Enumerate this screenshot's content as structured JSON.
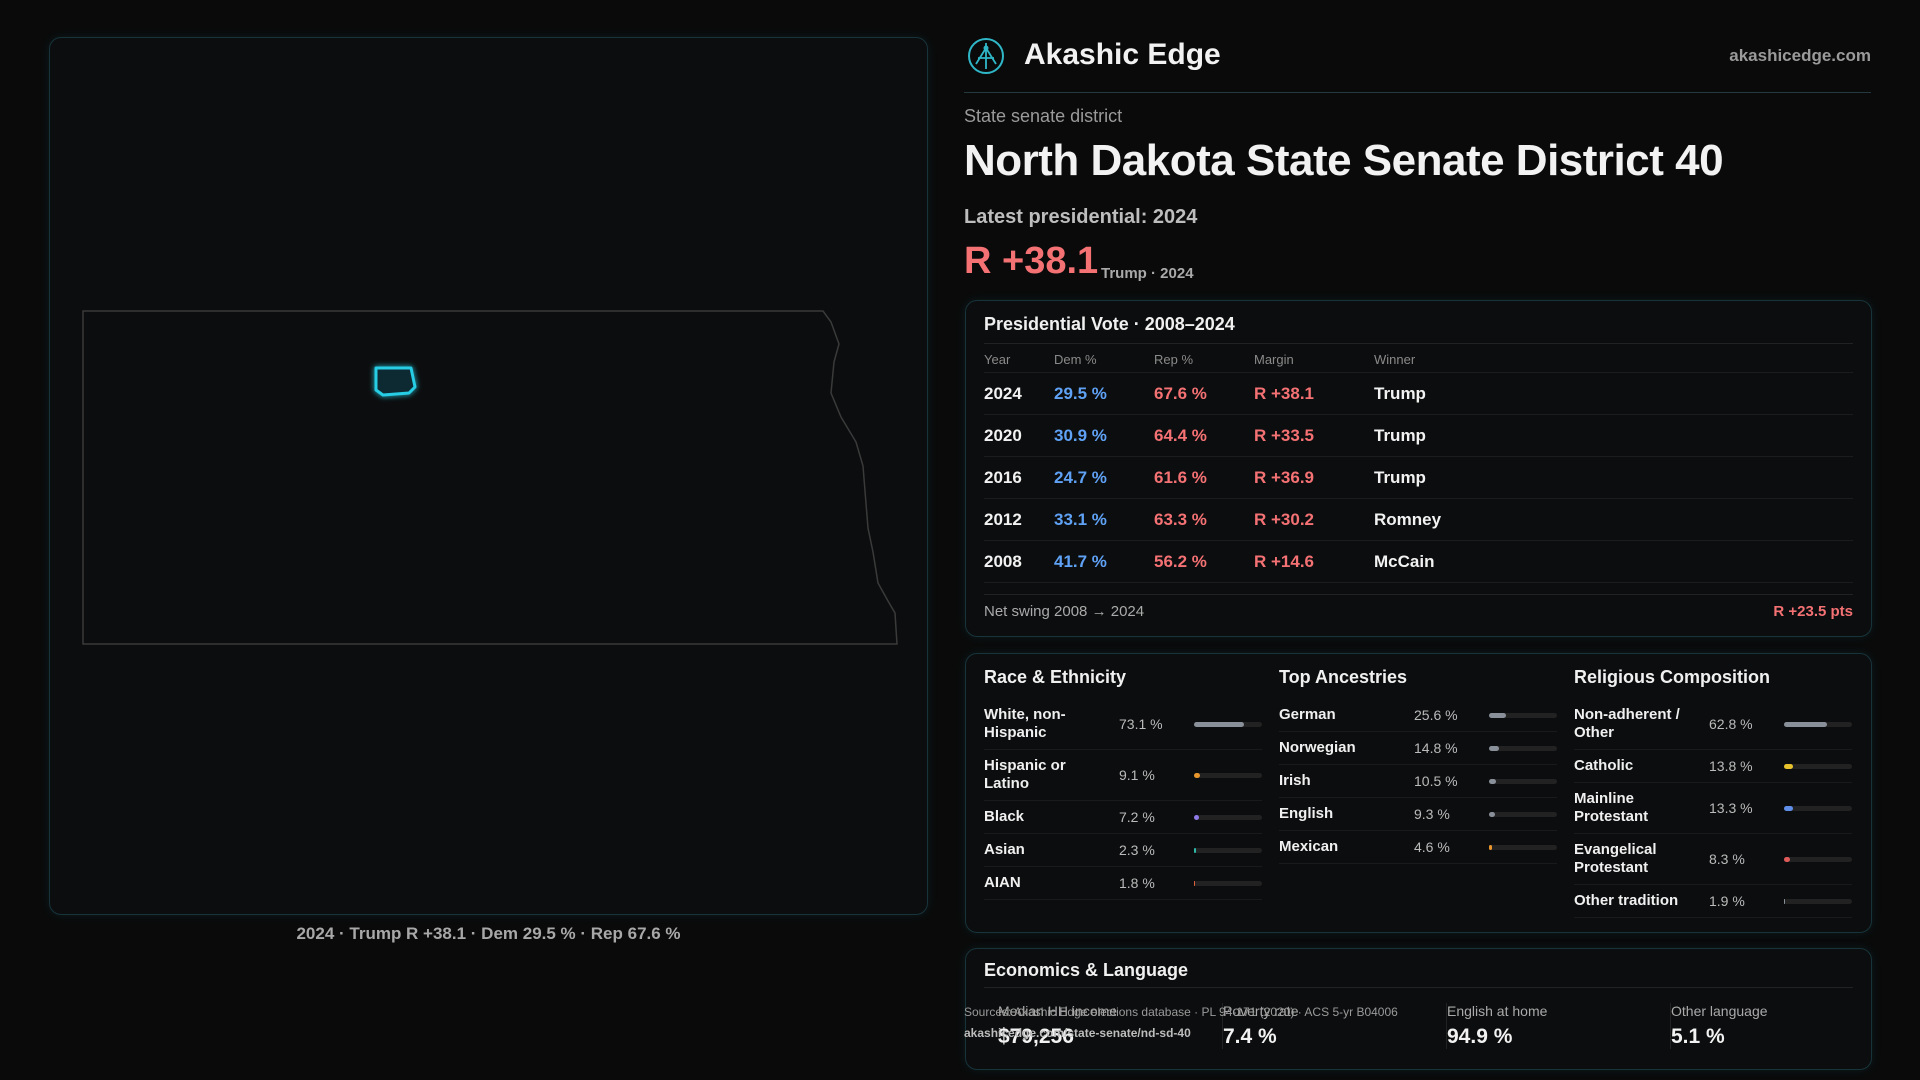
{
  "header": {
    "brand": "Akashic Edge",
    "site": "akashicedge.com"
  },
  "district": {
    "kind": "State senate district",
    "title": "North Dakota State Senate District 40",
    "latest": "Latest presidential: 2024",
    "margin": "R +38.1",
    "margin_note": "Trump · 2024"
  },
  "map": {
    "caption": "2024 · Trump R +38.1 · Dem 29.5 % · Rep 67.6 %"
  },
  "presidential": {
    "title": "Presidential Vote · 2008–2024",
    "columns": [
      "Year",
      "Dem %",
      "Rep %",
      "Margin",
      "Winner"
    ],
    "rows": [
      [
        "2024",
        "29.5 %",
        "67.6 %",
        "R +38.1",
        "Trump"
      ],
      [
        "2020",
        "30.9 %",
        "64.4 %",
        "R +33.5",
        "Trump"
      ],
      [
        "2016",
        "24.7 %",
        "61.6 %",
        "R +36.9",
        "Trump"
      ],
      [
        "2012",
        "33.1 %",
        "63.3 %",
        "R +30.2",
        "Romney"
      ],
      [
        "2008",
        "41.7 %",
        "56.2 %",
        "R +14.6",
        "McCain"
      ]
    ],
    "swing_label": "Net swing 2008 → 2024",
    "swing_value": "R +23.5 pts"
  },
  "race": {
    "title": "Race & Ethnicity",
    "items": [
      {
        "name": "White, non-Hispanic",
        "value": 73.1,
        "label": "73.1 %",
        "color": "#8a9099"
      },
      {
        "name": "Hispanic or Latino",
        "value": 9.1,
        "label": "9.1 %",
        "color": "#e8952c"
      },
      {
        "name": "Black",
        "value": 7.2,
        "label": "7.2 %",
        "color": "#8f7ae8"
      },
      {
        "name": "Asian",
        "value": 2.3,
        "label": "2.3 %",
        "color": "#2fb7a8"
      },
      {
        "name": "AIAN",
        "value": 1.8,
        "label": "1.8 %",
        "color": "#e0603a"
      }
    ]
  },
  "ancestries": {
    "title": "Top Ancestries",
    "items": [
      {
        "name": "German",
        "value": 25.6,
        "label": "25.6 %",
        "color": "#8a9099"
      },
      {
        "name": "Norwegian",
        "value": 14.8,
        "label": "14.8 %",
        "color": "#8a9099"
      },
      {
        "name": "Irish",
        "value": 10.5,
        "label": "10.5 %",
        "color": "#8a9099"
      },
      {
        "name": "English",
        "value": 9.3,
        "label": "9.3 %",
        "color": "#8a9099"
      },
      {
        "name": "Mexican",
        "value": 4.6,
        "label": "4.6 %",
        "color": "#e8952c"
      }
    ]
  },
  "religion": {
    "title": "Religious Composition",
    "items": [
      {
        "name": "Non-adherent / Other",
        "value": 62.8,
        "label": "62.8 %",
        "color": "#8a9099"
      },
      {
        "name": "Catholic",
        "value": 13.8,
        "label": "13.8 %",
        "color": "#e8c22c"
      },
      {
        "name": "Mainline Protestant",
        "value": 13.3,
        "label": "13.3 %",
        "color": "#5f8fe8"
      },
      {
        "name": "Evangelical Protestant",
        "value": 8.3,
        "label": "8.3 %",
        "color": "#e05a5a"
      },
      {
        "name": "Other tradition",
        "value": 1.9,
        "label": "1.9 %",
        "color": "#8a9099"
      }
    ]
  },
  "economics": {
    "title": "Economics & Language",
    "metrics": [
      {
        "label": "Median HH income",
        "value": "$79,256"
      },
      {
        "label": "Poverty rate",
        "value": "7.4 %"
      },
      {
        "label": "English at home",
        "value": "94.9 %"
      },
      {
        "label": "Other language",
        "value": "5.1 %"
      }
    ]
  },
  "footer": {
    "sources": "Sources: Akashic Edge elections database · PL 94-171 (2020) · ACS 5-yr B04006",
    "url": "akashicedge.com/state-senate/nd-sd-40"
  }
}
